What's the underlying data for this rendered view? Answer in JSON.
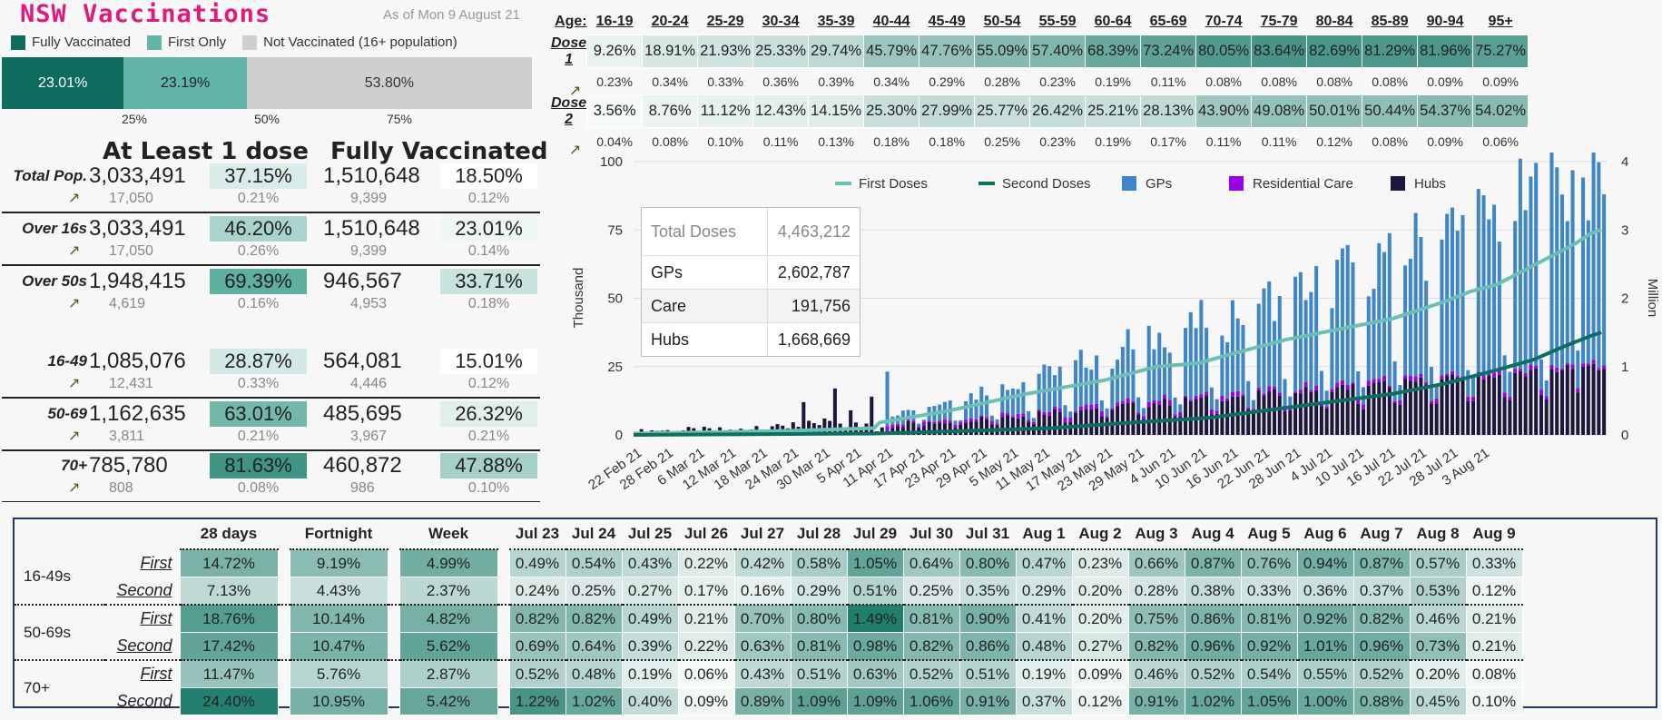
{
  "header": {
    "title": "NSW Vaccinations",
    "as_of": "As of   Mon 9 August 21"
  },
  "colors": {
    "fully": "#0f6b5e",
    "first_only": "#62b5a9",
    "not_vacc": "#cfcfcf",
    "first_doses_line": "#6cc0b3",
    "second_doses_line": "#0d6f60",
    "gps": "#3f86c6",
    "residential_care": "#9b00e6",
    "hubs": "#1d1540",
    "title": "#e0197a"
  },
  "legend_top": {
    "fully": "Fully Vaccinated",
    "first_only": "First Only",
    "not_vacc": "Not Vaccinated (16+ population)"
  },
  "stacked_bar": {
    "fully": "23.01%",
    "first_only": "23.19%",
    "not_vacc": "53.80%",
    "fully_value": 23.01,
    "first_only_value": 23.19,
    "not_vacc_value": 53.8,
    "ticks": [
      "25%",
      "50%",
      "75%"
    ]
  },
  "summary": {
    "col_at_least": "At Least 1 dose",
    "col_fully": "Fully Vaccinated",
    "rows": [
      {
        "label": "Total Pop.",
        "at_least": "3,033,491",
        "at_least_pct": "37.15%",
        "at_least_d": "17,050",
        "at_least_d_pct": "0.21%",
        "fully": "1,510,648",
        "fully_pct": "18.50%",
        "fully_d": "9,399",
        "fully_d_pct": "0.12%",
        "c1": "#d9ece9",
        "c2": "#ffffff"
      },
      {
        "label": "Over 16s",
        "at_least": "3,033,491",
        "at_least_pct": "46.20%",
        "at_least_d": "17,050",
        "at_least_d_pct": "0.26%",
        "fully": "1,510,648",
        "fully_pct": "23.01%",
        "fully_d": "9,399",
        "fully_d_pct": "0.14%",
        "c1": "#a9d3cc",
        "c2": "#eef7f5"
      },
      {
        "label": "Over 50s",
        "at_least": "1,948,415",
        "at_least_pct": "69.39%",
        "at_least_d": "4,619",
        "at_least_d_pct": "0.16%",
        "fully": "946,567",
        "fully_pct": "33.71%",
        "fully_d": "4,953",
        "fully_d_pct": "0.18%",
        "c1": "#5fae9f",
        "c2": "#c8e3dd"
      },
      {
        "label": "16-49",
        "at_least": "1,085,076",
        "at_least_pct": "28.87%",
        "at_least_d": "12,431",
        "at_least_d_pct": "0.33%",
        "fully": "564,081",
        "fully_pct": "15.01%",
        "fully_d": "4,446",
        "fully_d_pct": "0.12%",
        "c1": "#d2e9e5",
        "c2": "#ffffff"
      },
      {
        "label": "50-69",
        "at_least": "1,162,635",
        "at_least_pct": "63.01%",
        "at_least_d": "3,811",
        "at_least_d_pct": "0.21%",
        "fully": "485,695",
        "fully_pct": "26.32%",
        "fully_d": "3,967",
        "fully_d_pct": "0.21%",
        "c1": "#74b8ac",
        "c2": "#dfefec"
      },
      {
        "label": "70+",
        "at_least": "785,780",
        "at_least_pct": "81.63%",
        "at_least_d": "808",
        "at_least_d_pct": "0.08%",
        "fully": "460,872",
        "fully_pct": "47.88%",
        "fully_d": "986",
        "fully_d_pct": "0.10%",
        "c1": "#3f9485",
        "c2": "#a5d0c8"
      }
    ]
  },
  "age_table": {
    "age_label": "Age:",
    "ages": [
      "16-19",
      "20-24",
      "25-29",
      "30-34",
      "35-39",
      "40-44",
      "45-49",
      "50-54",
      "55-59",
      "60-64",
      "65-69",
      "70-74",
      "75-79",
      "80-84",
      "85-89",
      "90-94",
      "95+"
    ],
    "dose1_label": "Dose 1",
    "dose1": [
      "9.26%",
      "18.91%",
      "21.93%",
      "25.33%",
      "29.74%",
      "45.79%",
      "47.76%",
      "55.09%",
      "57.40%",
      "68.39%",
      "73.24%",
      "80.05%",
      "83.64%",
      "82.69%",
      "81.29%",
      "81.96%",
      "75.27%"
    ],
    "dose1_d": [
      "0.23%",
      "0.34%",
      "0.33%",
      "0.36%",
      "0.39%",
      "0.34%",
      "0.29%",
      "0.28%",
      "0.23%",
      "0.19%",
      "0.11%",
      "0.08%",
      "0.08%",
      "0.08%",
      "0.08%",
      "0.09%",
      "0.09%"
    ],
    "dose2_label": "Dose 2",
    "dose2": [
      "3.56%",
      "8.76%",
      "11.12%",
      "12.43%",
      "14.15%",
      "25.30%",
      "27.99%",
      "25.77%",
      "26.42%",
      "25.21%",
      "28.13%",
      "43.90%",
      "49.08%",
      "50.01%",
      "50.44%",
      "54.37%",
      "54.02%"
    ],
    "dose2_d": [
      "0.04%",
      "0.08%",
      "0.10%",
      "0.11%",
      "0.13%",
      "0.18%",
      "0.18%",
      "0.25%",
      "0.23%",
      "0.19%",
      "0.17%",
      "0.11%",
      "0.11%",
      "0.12%",
      "0.08%",
      "0.09%",
      "0.06%"
    ]
  },
  "tooltip": {
    "total_label": "Total Doses",
    "total": "4,463,212",
    "rows": [
      {
        "k": "GPs",
        "v": "2,602,787"
      },
      {
        "k": "Care",
        "v": "191,756"
      },
      {
        "k": "Hubs",
        "v": "1,668,669"
      }
    ]
  },
  "chart_data": {
    "type": "bar",
    "ylabel": "Thousand",
    "y2label": "Million",
    "ylim": [
      0,
      100
    ],
    "y2lim": [
      0,
      4
    ],
    "yticks": [
      "0",
      "25",
      "50",
      "75",
      "100"
    ],
    "y2ticks": [
      "0",
      "1",
      "2",
      "3",
      "4"
    ],
    "legend": [
      "First Doses",
      "Second Doses",
      "GPs",
      "Residential Care",
      "Hubs"
    ],
    "x_labels": [
      "22 Feb 21",
      "28 Feb 21",
      "6 Mar 21",
      "12 Mar 21",
      "18 Mar 21",
      "24 Mar 21",
      "30 Mar 21",
      "5 Apr 21",
      "11 Apr 21",
      "17 Apr 21",
      "23 Apr 21",
      "29 Apr 21",
      "5 May 21",
      "11 May 21",
      "17 May 21",
      "23 May 21",
      "29 May 21",
      "4 Jun 21",
      "10 Jun 21",
      "16 Jun 21",
      "22 Jun 21",
      "28 Jun 21",
      "4 Jul 21",
      "10 Jul 21",
      "16 Jul 21",
      "22 Jul 21",
      "28 Jul 21",
      "3 Aug 21"
    ],
    "first_doses_million": [
      [
        0,
        0.02
      ],
      [
        30,
        0.06
      ],
      [
        46,
        0.1
      ],
      [
        47,
        0.18
      ],
      [
        60,
        0.35
      ],
      [
        75,
        0.6
      ],
      [
        90,
        0.8
      ],
      [
        100,
        1.0
      ],
      [
        108,
        1.05
      ],
      [
        115,
        1.2
      ],
      [
        125,
        1.4
      ],
      [
        135,
        1.55
      ],
      [
        145,
        1.7
      ],
      [
        155,
        1.95
      ],
      [
        160,
        2.1
      ],
      [
        165,
        2.2
      ],
      [
        170,
        2.4
      ],
      [
        175,
        2.6
      ],
      [
        180,
        2.8
      ],
      [
        183,
        2.95
      ],
      [
        185,
        3.0
      ]
    ],
    "second_doses_million": [
      [
        0,
        0.0
      ],
      [
        46,
        0.02
      ],
      [
        60,
        0.05
      ],
      [
        80,
        0.1
      ],
      [
        95,
        0.18
      ],
      [
        110,
        0.25
      ],
      [
        125,
        0.4
      ],
      [
        135,
        0.5
      ],
      [
        145,
        0.6
      ],
      [
        155,
        0.75
      ],
      [
        165,
        0.95
      ],
      [
        172,
        1.1
      ],
      [
        178,
        1.3
      ],
      [
        183,
        1.45
      ],
      [
        185,
        1.5
      ]
    ]
  },
  "bottom_table": {
    "headers": [
      "28 days",
      "Fortnight",
      "Week",
      "Jul 23",
      "Jul 24",
      "Jul 25",
      "Jul 26",
      "Jul 27",
      "Jul 28",
      "Jul 29",
      "Jul 30",
      "Jul 31",
      "Aug 1",
      "Aug 2",
      "Aug 3",
      "Aug 4",
      "Aug 5",
      "Aug 6",
      "Aug 7",
      "Aug 8",
      "Aug 9"
    ],
    "groups": [
      {
        "name": "16-49s",
        "rows": [
          {
            "sub": "First",
            "vals": [
              "14.72%",
              "9.19%",
              "4.99%",
              "0.49%",
              "0.54%",
              "0.43%",
              "0.22%",
              "0.42%",
              "0.58%",
              "1.05%",
              "0.64%",
              "0.80%",
              "0.47%",
              "0.23%",
              "0.66%",
              "0.87%",
              "0.76%",
              "0.94%",
              "0.87%",
              "0.57%",
              "0.33%"
            ]
          },
          {
            "sub": "Second",
            "vals": [
              "7.13%",
              "4.43%",
              "2.37%",
              "0.24%",
              "0.25%",
              "0.27%",
              "0.17%",
              "0.16%",
              "0.29%",
              "0.51%",
              "0.25%",
              "0.35%",
              "0.29%",
              "0.20%",
              "0.28%",
              "0.38%",
              "0.33%",
              "0.36%",
              "0.37%",
              "0.53%",
              "0.12%"
            ]
          }
        ]
      },
      {
        "name": "50-69s",
        "rows": [
          {
            "sub": "First",
            "vals": [
              "18.76%",
              "10.14%",
              "4.82%",
              "0.82%",
              "0.82%",
              "0.49%",
              "0.21%",
              "0.70%",
              "0.80%",
              "1.49%",
              "0.81%",
              "0.90%",
              "0.41%",
              "0.20%",
              "0.75%",
              "0.86%",
              "0.81%",
              "0.92%",
              "0.82%",
              "0.46%",
              "0.21%"
            ]
          },
          {
            "sub": "Second",
            "vals": [
              "17.42%",
              "10.47%",
              "5.62%",
              "0.69%",
              "0.64%",
              "0.39%",
              "0.22%",
              "0.63%",
              "0.81%",
              "0.98%",
              "0.82%",
              "0.86%",
              "0.48%",
              "0.27%",
              "0.82%",
              "0.96%",
              "0.92%",
              "1.01%",
              "0.96%",
              "0.73%",
              "0.21%"
            ]
          }
        ]
      },
      {
        "name": "70+",
        "rows": [
          {
            "sub": "First",
            "vals": [
              "11.47%",
              "5.76%",
              "2.87%",
              "0.52%",
              "0.48%",
              "0.19%",
              "0.06%",
              "0.43%",
              "0.51%",
              "0.63%",
              "0.52%",
              "0.51%",
              "0.19%",
              "0.09%",
              "0.46%",
              "0.52%",
              "0.54%",
              "0.55%",
              "0.52%",
              "0.20%",
              "0.08%"
            ]
          },
          {
            "sub": "Second",
            "vals": [
              "24.40%",
              "10.95%",
              "5.42%",
              "1.22%",
              "1.02%",
              "0.40%",
              "0.09%",
              "0.89%",
              "1.09%",
              "1.09%",
              "1.06%",
              "0.91%",
              "0.37%",
              "0.12%",
              "0.91%",
              "1.02%",
              "1.05%",
              "1.00%",
              "0.88%",
              "0.45%",
              "0.10%"
            ]
          }
        ]
      }
    ]
  }
}
